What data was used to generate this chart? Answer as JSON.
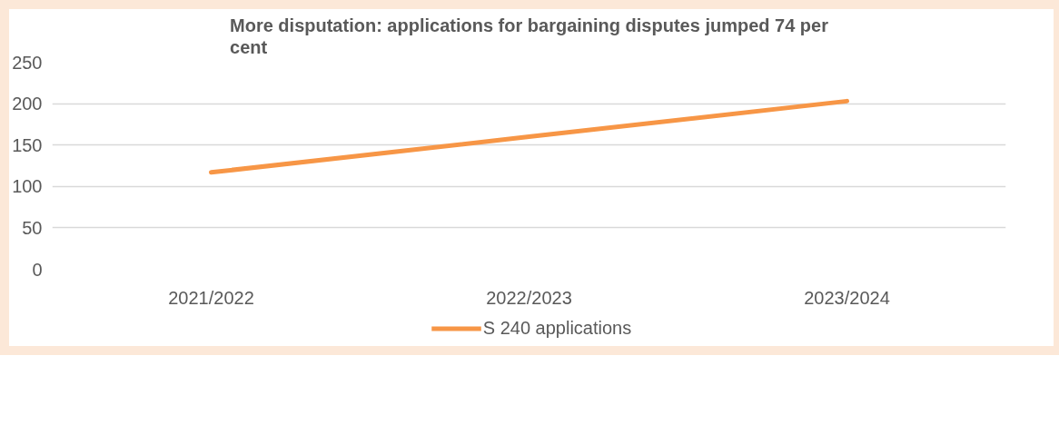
{
  "chart_data": {
    "type": "line",
    "title": "More disputation: applications for bargaining disputes jumped 74 per cent",
    "categories": [
      "2021/2022",
      "2022/2023",
      "2023/2024"
    ],
    "series": [
      {
        "name": "S 240 applications",
        "color": "#f79646",
        "values": [
          117,
          160,
          203
        ]
      }
    ],
    "ylim": [
      0,
      250
    ],
    "yticks": [
      0,
      50,
      100,
      150,
      200,
      250
    ],
    "grid": "y",
    "legend": "bottom",
    "marker": "none",
    "line_style": "solid"
  }
}
